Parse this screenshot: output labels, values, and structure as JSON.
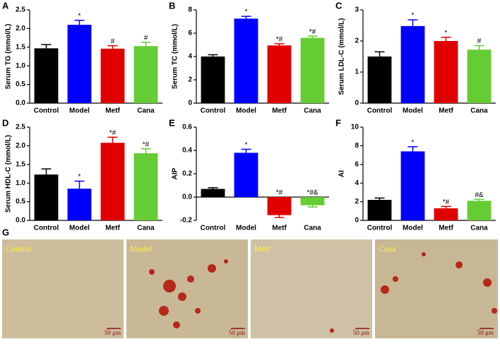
{
  "chart_data": [
    {
      "type": "bar",
      "panel": "A",
      "ylabel": "Serum TG (mmol/L)",
      "categories": [
        "Control",
        "Model",
        "Metf",
        "Cana"
      ],
      "colors": [
        "#000000",
        "#0000ff",
        "#e00000",
        "#66cc33"
      ],
      "values": [
        1.47,
        2.1,
        1.46,
        1.53
      ],
      "errors": [
        0.1,
        0.12,
        0.08,
        0.1
      ],
      "annotations": [
        null,
        "*",
        "#",
        "#"
      ],
      "ylim": [
        0,
        2.5
      ],
      "yticks": [
        {
          "value": 0,
          "label": "0.0"
        },
        0.5,
        {
          "value": 1,
          "label": "1.0"
        },
        1.5,
        {
          "value": 2,
          "label": "2.0"
        },
        2.5
      ]
    },
    {
      "type": "bar",
      "panel": "B",
      "ylabel": "Serum TC (mmol/L)",
      "categories": [
        "Control",
        "Model",
        "Metf",
        "Cana"
      ],
      "colors": [
        "#000000",
        "#0000ff",
        "#e00000",
        "#66cc33"
      ],
      "values": [
        4.0,
        7.25,
        4.95,
        5.6
      ],
      "errors": [
        0.15,
        0.2,
        0.15,
        0.15
      ],
      "annotations": [
        null,
        "*",
        "*#",
        "*#"
      ],
      "ylim": [
        0,
        8
      ],
      "yticks": [
        0,
        2,
        4,
        6,
        8
      ]
    },
    {
      "type": "bar",
      "panel": "C",
      "ylabel": "Serum LDL-C (mmol/L)",
      "categories": [
        "Control",
        "Model",
        "Metf",
        "Cana"
      ],
      "colors": [
        "#000000",
        "#0000ff",
        "#e00000",
        "#66cc33"
      ],
      "values": [
        1.5,
        2.48,
        2.0,
        1.72
      ],
      "errors": [
        0.15,
        0.2,
        0.12,
        0.13
      ],
      "annotations": [
        null,
        "*",
        "*",
        "#"
      ],
      "ylim": [
        0,
        3
      ],
      "yticks": [
        0,
        1,
        2,
        3
      ]
    },
    {
      "type": "bar",
      "panel": "D",
      "ylabel": "Serum HDL-C (mmol/L)",
      "categories": [
        "Control",
        "Model",
        "Metf",
        "Cana"
      ],
      "colors": [
        "#000000",
        "#0000ff",
        "#e00000",
        "#66cc33"
      ],
      "values": [
        1.23,
        0.85,
        2.08,
        1.8
      ],
      "errors": [
        0.15,
        0.2,
        0.15,
        0.12
      ],
      "annotations": [
        null,
        "*",
        "*#",
        "*#"
      ],
      "ylim": [
        0,
        2.5
      ],
      "yticks": [
        {
          "value": 0,
          "label": "0.0"
        },
        0.5,
        {
          "value": 1,
          "label": "1.0"
        },
        1.5,
        {
          "value": 2,
          "label": "2.0"
        },
        2.5
      ]
    },
    {
      "type": "bar",
      "panel": "E",
      "ylabel": "AIP",
      "categories": [
        "Control",
        "Model",
        "Metf",
        "Cana"
      ],
      "colors": [
        "#000000",
        "#0000ff",
        "#e00000",
        "#66cc33"
      ],
      "values": [
        0.07,
        0.38,
        -0.155,
        -0.07
      ],
      "errors": [
        0.01,
        0.03,
        0.02,
        0.015
      ],
      "annotations": [
        null,
        "*",
        "*#",
        "*#&"
      ],
      "ylim": [
        -0.2,
        0.6
      ],
      "yticks": [
        -0.2,
        {
          "value": 0,
          "label": "0.0"
        },
        0.2,
        0.4,
        0.6
      ]
    },
    {
      "type": "bar",
      "panel": "F",
      "ylabel": "AI",
      "categories": [
        "Control",
        "Model",
        "Metf",
        "Cana"
      ],
      "colors": [
        "#000000",
        "#0000ff",
        "#e00000",
        "#66cc33"
      ],
      "values": [
        2.2,
        7.4,
        1.3,
        2.1
      ],
      "errors": [
        0.2,
        0.5,
        0.2,
        0.15
      ],
      "annotations": [
        null,
        "*",
        "*#",
        "#&"
      ],
      "ylim": [
        0,
        10
      ],
      "yticks": [
        0,
        2,
        4,
        6,
        8,
        10
      ]
    }
  ],
  "panel_g": {
    "panel": "G",
    "images": [
      {
        "label": "Control",
        "scale_bar": "50 μm"
      },
      {
        "label": "Model",
        "scale_bar": "50 μm"
      },
      {
        "label": "Metf",
        "scale_bar": "50 μm"
      },
      {
        "label": "Cana",
        "scale_bar": "50 μm"
      }
    ]
  }
}
